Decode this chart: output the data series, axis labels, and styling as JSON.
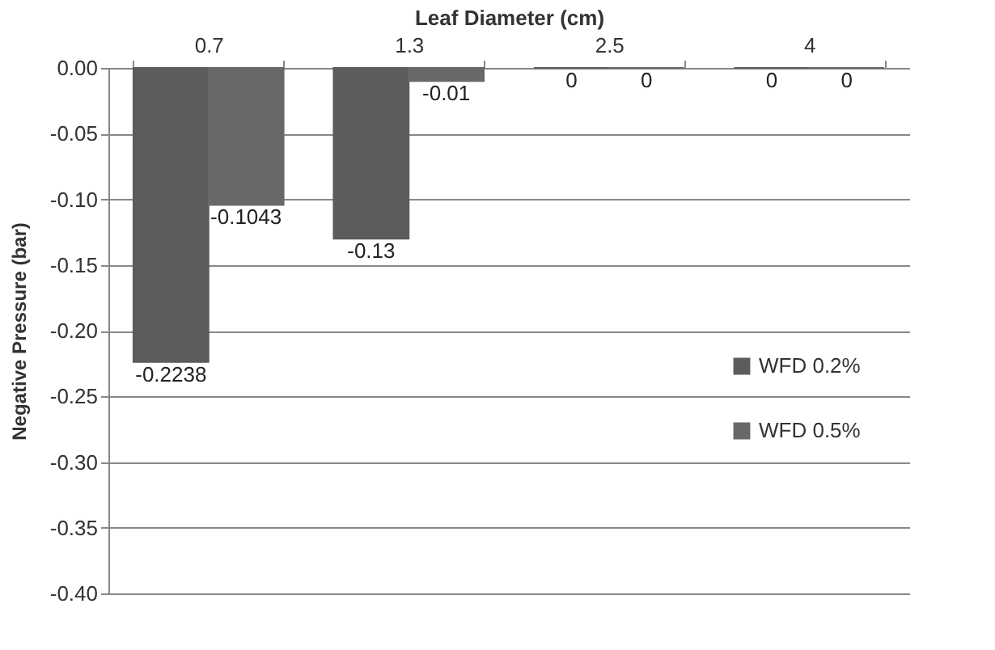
{
  "chart_data": {
    "type": "bar",
    "xlabel": "Leaf Diameter  (cm)",
    "ylabel": "Negative Pressure  (bar)",
    "categories": [
      "0.7",
      "1.3",
      "2.5",
      "4"
    ],
    "series": [
      {
        "name": "WFD 0.2%",
        "color": "#5c5c5c",
        "values": [
          -0.2238,
          -0.13,
          0,
          0
        ]
      },
      {
        "name": "WFD 0.5%",
        "color": "#686868",
        "values": [
          -0.1043,
          -0.01,
          0,
          0
        ]
      }
    ],
    "ylim": [
      -0.4,
      0
    ],
    "yticks": [
      {
        "value": 0,
        "label": "0.00"
      },
      {
        "value": -0.05,
        "label": "-0.05"
      },
      {
        "value": -0.1,
        "label": "-0.10"
      },
      {
        "value": -0.15,
        "label": "-0.15"
      },
      {
        "value": -0.2,
        "label": "-0.20"
      },
      {
        "value": -0.25,
        "label": "-0.25"
      },
      {
        "value": -0.3,
        "label": "-0.30"
      },
      {
        "value": -0.35,
        "label": "-0.35"
      },
      {
        "value": -0.4,
        "label": "-0.40"
      }
    ],
    "data_labels": true,
    "grid": "y",
    "legend": "right"
  }
}
